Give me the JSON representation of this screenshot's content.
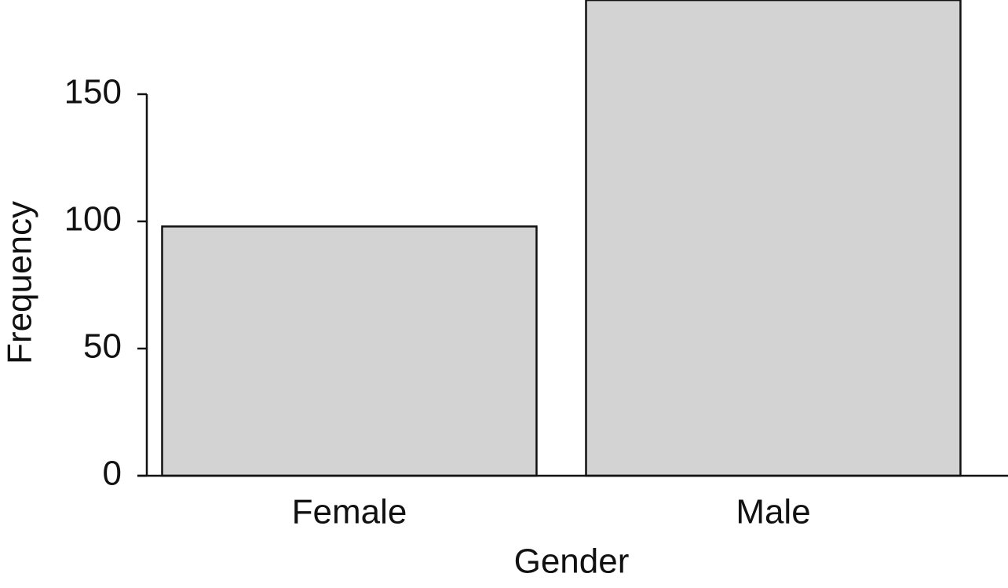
{
  "chart_data": {
    "type": "bar",
    "x_label": "Gender",
    "y_label": "Frequency",
    "categories": [
      "Female",
      "Male"
    ],
    "values": [
      98,
      187
    ],
    "color": "#d3d3d3",
    "ylim": [
      0,
      187
    ],
    "yticks": [
      0,
      50,
      100,
      150
    ]
  }
}
